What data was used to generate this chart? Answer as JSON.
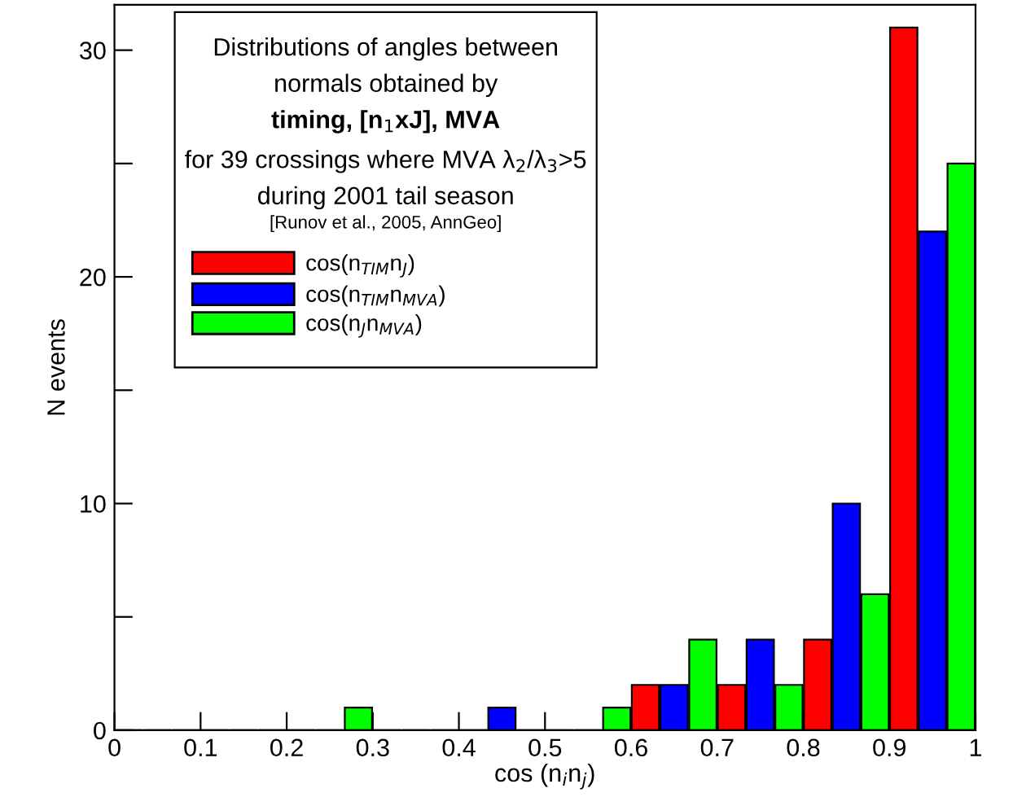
{
  "chart_data": {
    "type": "histogram",
    "annotations": [
      "Distributions of angles between",
      "normals obtained by",
      "timing, [n$_{1}$xJ], MVA",
      "for 39 crossings where MVA λ$_{2}$/λ$_{3}$>5",
      "during 2001 tail season",
      "[Runov et al., 2005, AnnGeo]"
    ],
    "xlabel": "cos (n$_{i}$n$_{j}$)",
    "ylabel": "N events",
    "bins": [
      0,
      0.1,
      0.2,
      0.3,
      0.4,
      0.5,
      0.6,
      0.7,
      0.8,
      0.9,
      1
    ],
    "series": [
      {
        "name": "cos(n$_{TIM}$n$_{J}$)",
        "color": "#ff0000",
        "values": [
          0,
          0,
          0,
          0,
          0,
          0,
          2,
          2,
          4,
          31
        ]
      },
      {
        "name": "cos(n$_{TIM}$n$_{MVA}$)",
        "color": "#0000ff",
        "values": [
          0,
          0,
          0,
          0,
          1,
          0,
          2,
          4,
          10,
          22
        ]
      },
      {
        "name": "cos(n$_{J}$n$_{MVA}$)",
        "color": "#00ff00",
        "values": [
          0,
          0,
          1,
          0,
          0,
          1,
          4,
          2,
          6,
          25
        ]
      }
    ],
    "xlim": [
      0,
      1
    ],
    "xticks": [
      0,
      0.1,
      0.2,
      0.3,
      0.4,
      0.5,
      0.6,
      0.7,
      0.8,
      0.9,
      1
    ],
    "ylim": [
      0,
      32
    ],
    "yticks": [
      0,
      {
        "value": 5,
        "label": null
      },
      10,
      {
        "value": 15,
        "label": null
      },
      20,
      {
        "value": 25,
        "label": null
      },
      30
    ],
    "legend": "center left",
    "grid": false
  }
}
